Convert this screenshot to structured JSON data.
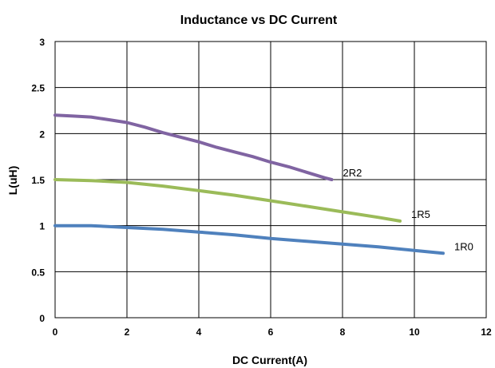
{
  "chart_data": {
    "type": "line",
    "title": "Inductance vs DC Current",
    "xlabel": "DC Current(A)",
    "ylabel": "L(uH)",
    "xlim": [
      0,
      12
    ],
    "ylim": [
      0,
      3
    ],
    "xticks": [
      0,
      2,
      4,
      6,
      8,
      10,
      12
    ],
    "yticks": [
      0,
      0.5,
      1,
      1.5,
      2,
      2.5,
      3
    ],
    "ytick_labels": [
      "0",
      "0.5",
      "1",
      "1.5",
      "2",
      "2.5",
      "3"
    ],
    "grid": true,
    "series": [
      {
        "name": "2R2",
        "color": "#8064a2",
        "x": [
          0,
          0.5,
          1,
          1.5,
          2,
          2.5,
          3,
          3.5,
          4,
          4.5,
          5,
          5.5,
          6,
          6.5,
          7,
          7.5,
          7.7
        ],
        "y": [
          2.2,
          2.19,
          2.18,
          2.15,
          2.12,
          2.07,
          2.01,
          1.96,
          1.91,
          1.85,
          1.8,
          1.75,
          1.69,
          1.64,
          1.58,
          1.52,
          1.5
        ]
      },
      {
        "name": "1R5",
        "color": "#9bbb59",
        "x": [
          0,
          1,
          2,
          3,
          4,
          5,
          6,
          7,
          8,
          9,
          9.6
        ],
        "y": [
          1.5,
          1.49,
          1.47,
          1.43,
          1.38,
          1.33,
          1.27,
          1.21,
          1.15,
          1.09,
          1.05
        ]
      },
      {
        "name": "1R0",
        "color": "#4f81bd",
        "x": [
          0,
          1,
          2,
          3,
          4,
          5,
          6,
          7,
          8,
          9,
          10,
          10.8
        ],
        "y": [
          1.0,
          1.0,
          0.98,
          0.96,
          0.93,
          0.9,
          0.86,
          0.83,
          0.8,
          0.77,
          0.73,
          0.7
        ]
      }
    ]
  }
}
